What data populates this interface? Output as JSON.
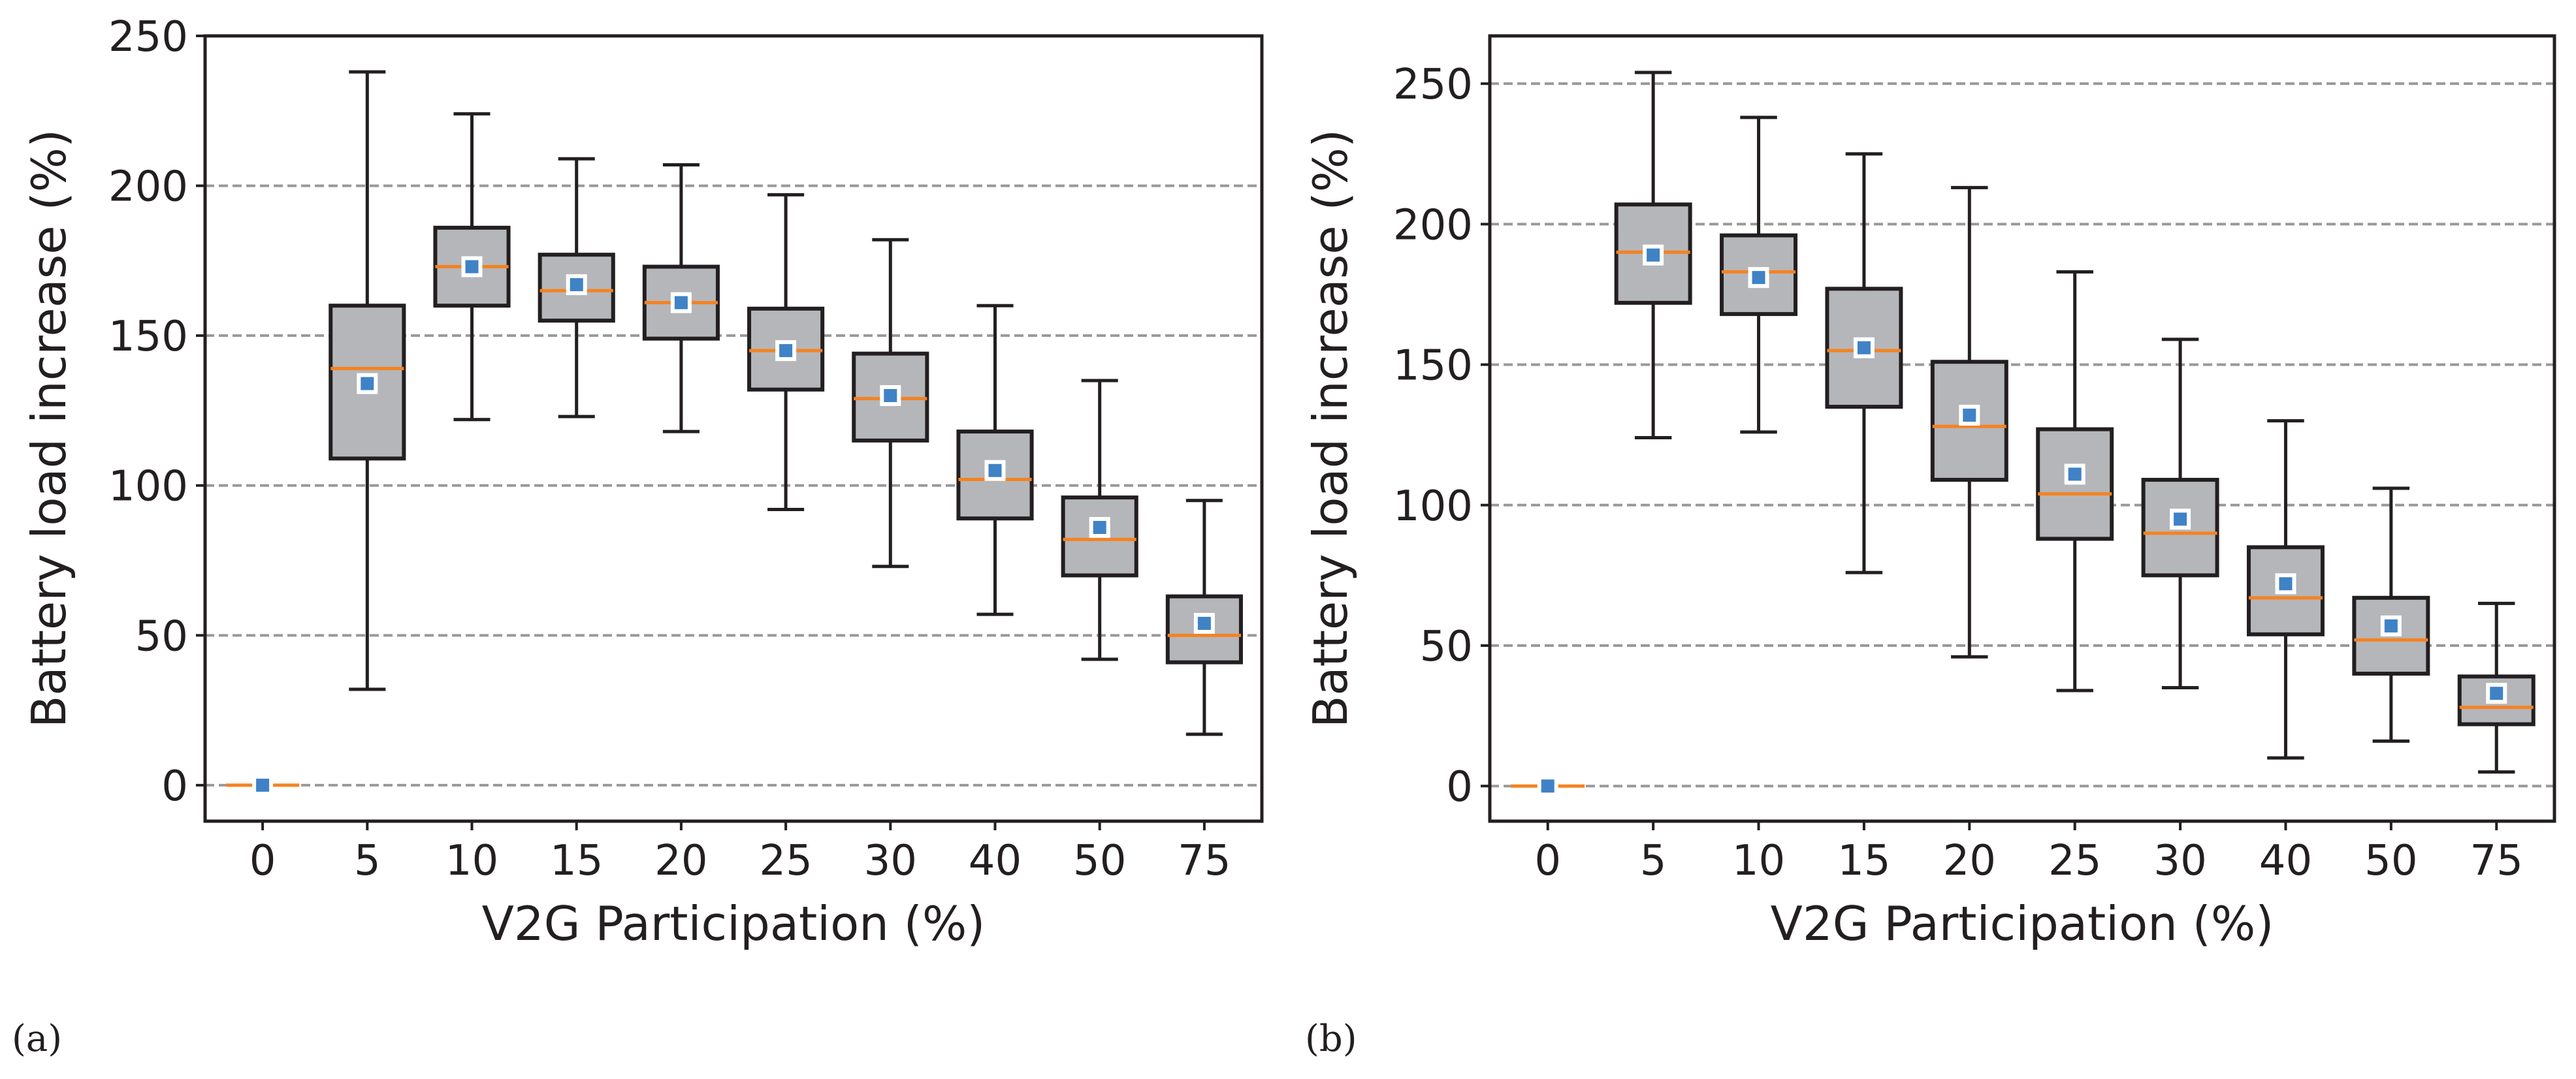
{
  "colors": {
    "box_fill": "#b5b6ba",
    "box_edge": "#231f20",
    "median": "#f58220",
    "mean": "#3f82c6",
    "grid": "#999999"
  },
  "chart_data": [
    {
      "type": "box",
      "panel_label": "(a)",
      "xlabel": "V2G Participation (%)",
      "ylabel": "Battery load increase (%)",
      "ylim": [
        -12,
        250
      ],
      "yticks": [
        0,
        50,
        100,
        150,
        200,
        250
      ],
      "grid": "horizontal dashed",
      "categories": [
        "0",
        "5",
        "10",
        "15",
        "20",
        "25",
        "30",
        "40",
        "50",
        "75"
      ],
      "boxes": [
        {
          "low": 0,
          "q1": 0,
          "median": 0,
          "q3": 0,
          "high": 0,
          "mean": 0
        },
        {
          "low": 32,
          "q1": 109,
          "median": 139,
          "q3": 160,
          "high": 238,
          "mean": 134
        },
        {
          "low": 122,
          "q1": 160,
          "median": 173,
          "q3": 186,
          "high": 224,
          "mean": 173
        },
        {
          "low": 123,
          "q1": 155,
          "median": 165,
          "q3": 177,
          "high": 209,
          "mean": 167
        },
        {
          "low": 118,
          "q1": 149,
          "median": 161,
          "q3": 173,
          "high": 207,
          "mean": 161
        },
        {
          "low": 92,
          "q1": 132,
          "median": 145,
          "q3": 159,
          "high": 197,
          "mean": 145
        },
        {
          "low": 73,
          "q1": 115,
          "median": 129,
          "q3": 144,
          "high": 182,
          "mean": 130
        },
        {
          "low": 57,
          "q1": 89,
          "median": 102,
          "q3": 118,
          "high": 160,
          "mean": 105
        },
        {
          "low": 42,
          "q1": 70,
          "median": 82,
          "q3": 96,
          "high": 135,
          "mean": 86
        },
        {
          "low": 17,
          "q1": 41,
          "median": 50,
          "q3": 63,
          "high": 95,
          "mean": 54
        }
      ]
    },
    {
      "type": "box",
      "panel_label": "(b)",
      "xlabel": "V2G Participation (%)",
      "ylabel": "Battery load increase (%)",
      "ylim": [
        -12.5,
        267
      ],
      "yticks": [
        0,
        50,
        100,
        150,
        200,
        250
      ],
      "grid": "horizontal dashed",
      "categories": [
        "0",
        "5",
        "10",
        "15",
        "20",
        "25",
        "30",
        "40",
        "50",
        "75"
      ],
      "boxes": [
        {
          "low": 0,
          "q1": 0,
          "median": 0,
          "q3": 0,
          "high": 0,
          "mean": 0
        },
        {
          "low": 124,
          "q1": 172,
          "median": 190,
          "q3": 207,
          "high": 254,
          "mean": 189
        },
        {
          "low": 126,
          "q1": 168,
          "median": 183,
          "q3": 196,
          "high": 238,
          "mean": 181
        },
        {
          "low": 76,
          "q1": 135,
          "median": 155,
          "q3": 177,
          "high": 225,
          "mean": 156
        },
        {
          "low": 46,
          "q1": 109,
          "median": 128,
          "q3": 151,
          "high": 213,
          "mean": 132
        },
        {
          "low": 34,
          "q1": 88,
          "median": 104,
          "q3": 127,
          "high": 183,
          "mean": 111
        },
        {
          "low": 35,
          "q1": 75,
          "median": 90,
          "q3": 109,
          "high": 159,
          "mean": 95
        },
        {
          "low": 10,
          "q1": 54,
          "median": 67,
          "q3": 85,
          "high": 130,
          "mean": 72
        },
        {
          "low": 16,
          "q1": 40,
          "median": 52,
          "q3": 67,
          "high": 106,
          "mean": 57
        },
        {
          "low": 5,
          "q1": 22,
          "median": 28,
          "q3": 39,
          "high": 65,
          "mean": 33
        }
      ]
    }
  ]
}
